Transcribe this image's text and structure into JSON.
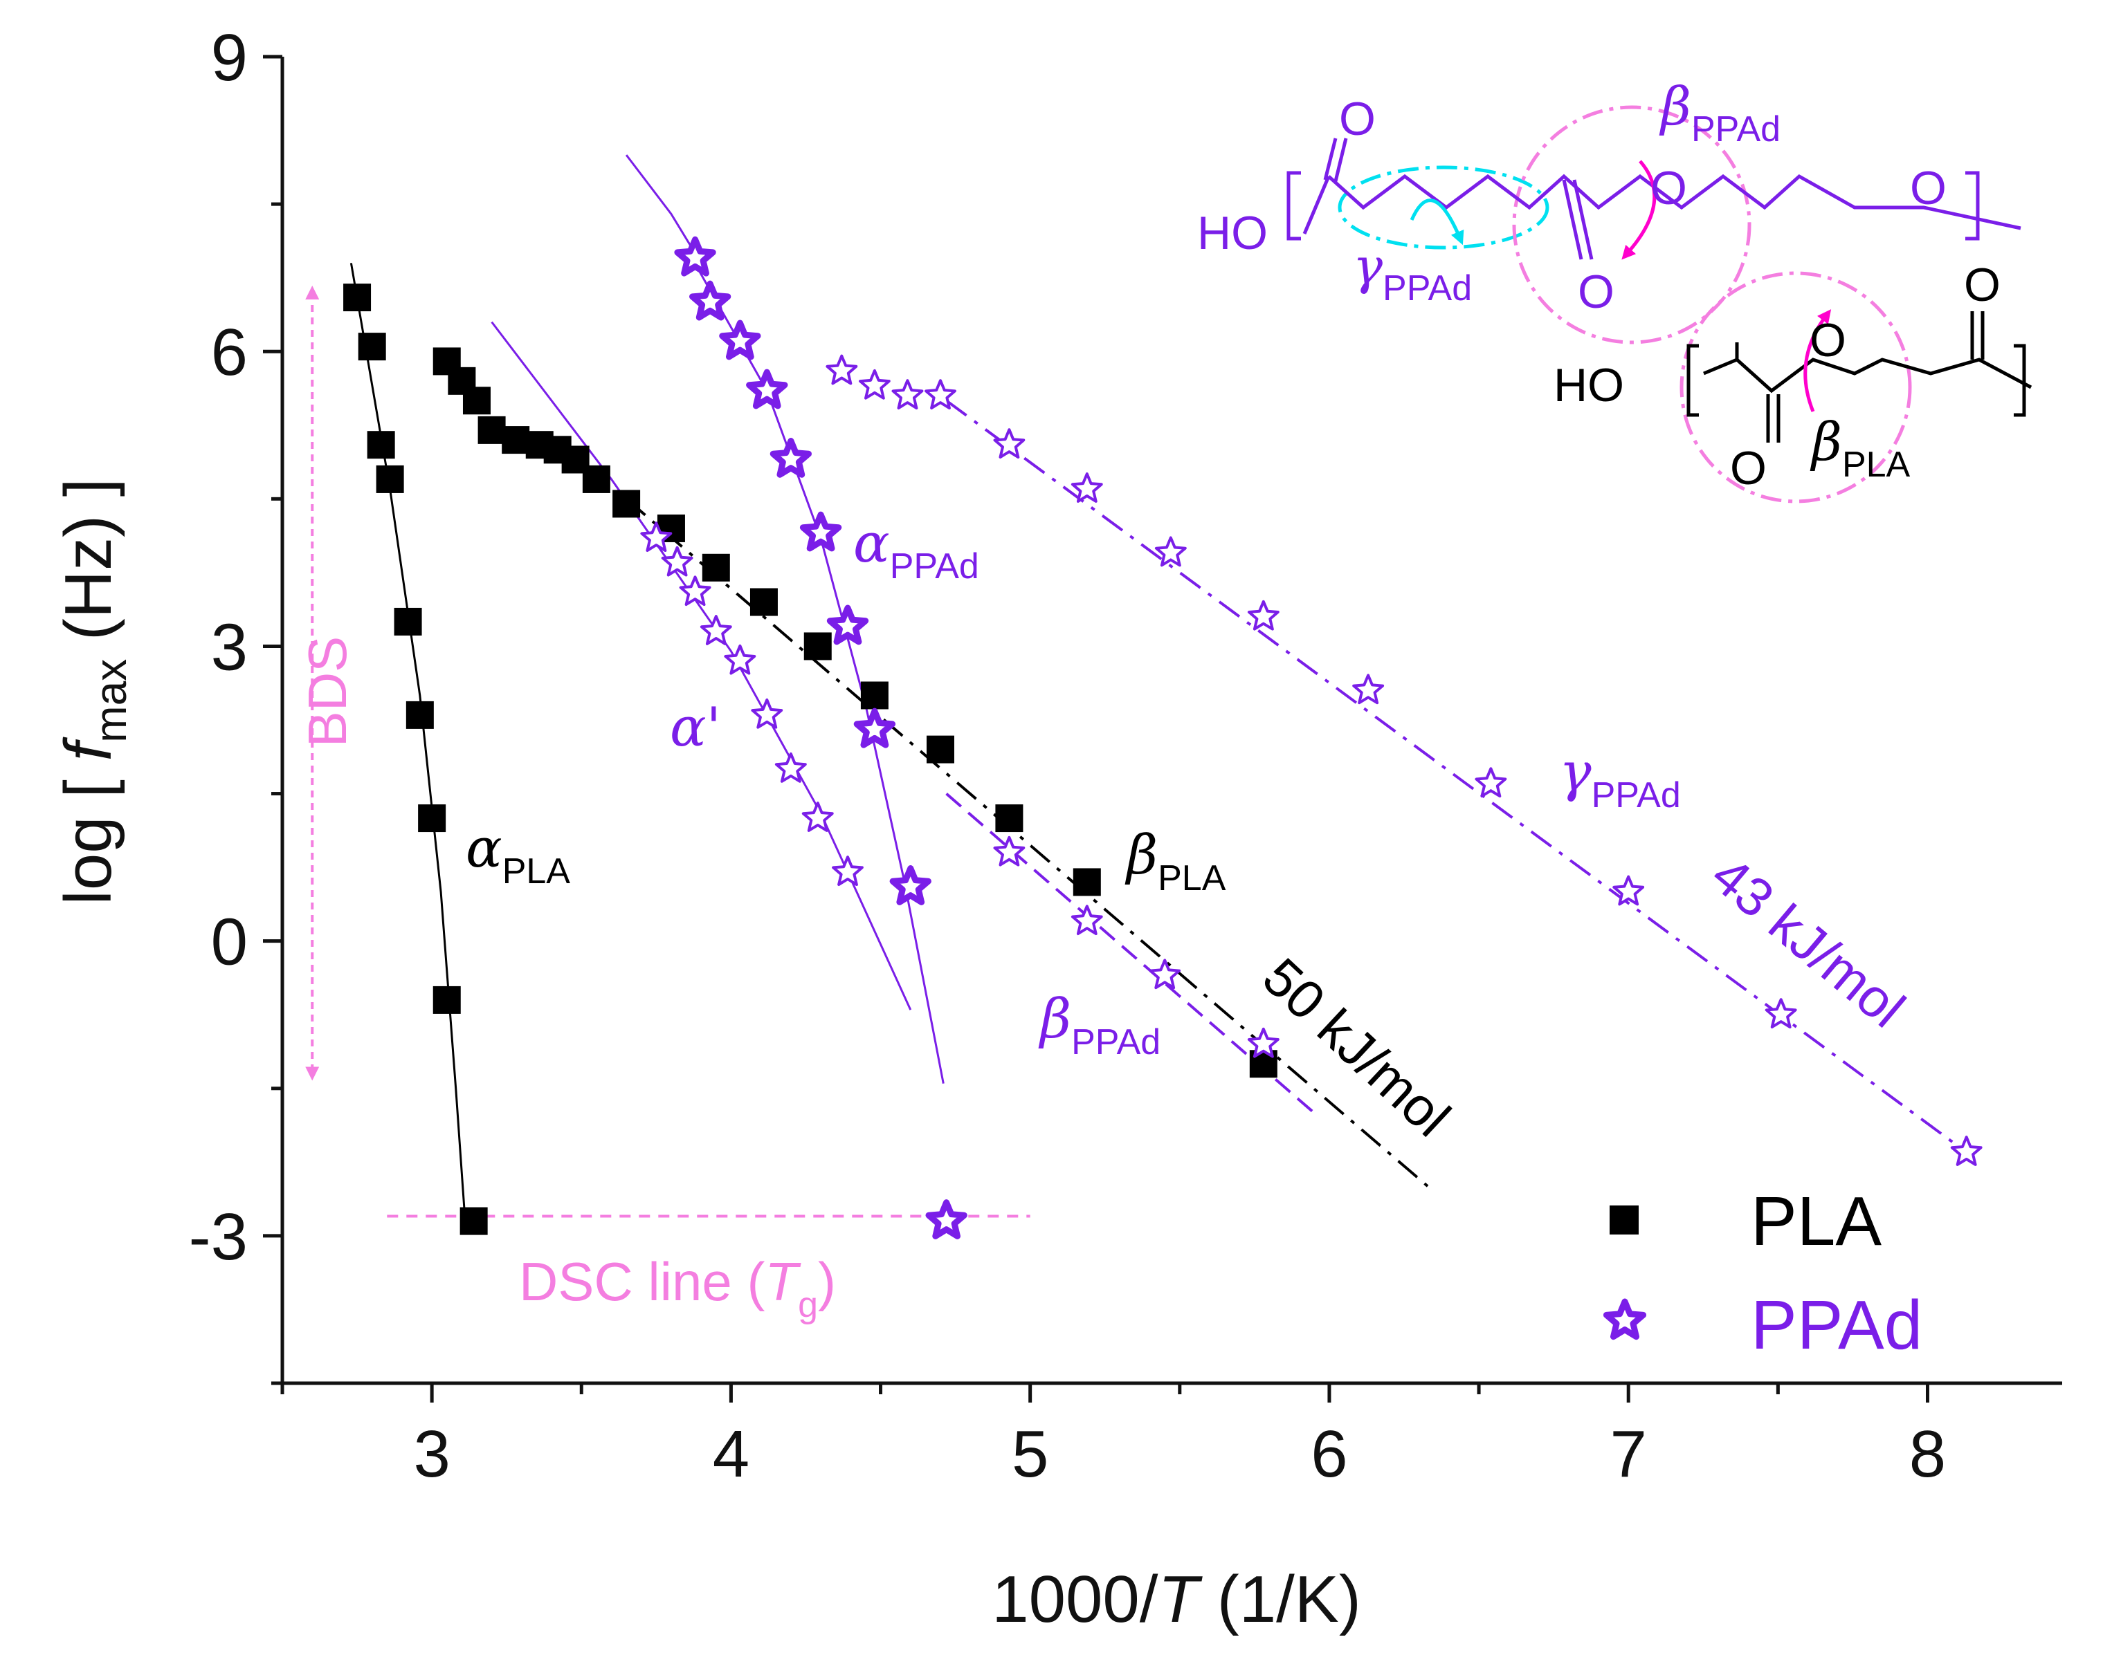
{
  "chart_data": {
    "type": "scatter",
    "xlabel": "1000/T (1/K)",
    "xlabel_parts": {
      "pre": "1000/",
      "var": "T",
      "post": " (1/K)"
    },
    "ylabel_parts": {
      "pre": "log [ ",
      "var": "f",
      "sub": "max",
      "post": " (Hz) ]"
    },
    "xlim": [
      2.5,
      8.45
    ],
    "ylim": [
      -4.5,
      9
    ],
    "x_ticks": [
      3,
      4,
      5,
      6,
      7,
      8
    ],
    "y_ticks": [
      9,
      6,
      3,
      0,
      -3
    ],
    "y_tick_labels": [
      "9",
      "6",
      "3",
      "0",
      "-3"
    ],
    "colors": {
      "PLA": "#000000",
      "PPAd": "#7a1ee8",
      "pink": "#f47ee0",
      "magenta": "#ff00cc",
      "cyan": "#00e0f0"
    },
    "series": [
      {
        "name": "PLA",
        "marker": "square",
        "color": "#000000",
        "points": [
          [
            2.75,
            6.55
          ],
          [
            2.8,
            6.05
          ],
          [
            2.83,
            5.05
          ],
          [
            2.86,
            4.7
          ],
          [
            2.92,
            3.25
          ],
          [
            2.96,
            2.3
          ],
          [
            3.0,
            1.25
          ],
          [
            3.05,
            -0.6
          ],
          [
            3.14,
            -2.85
          ],
          [
            3.05,
            5.9
          ],
          [
            3.1,
            5.7
          ],
          [
            3.15,
            5.5
          ],
          [
            3.2,
            5.2
          ],
          [
            3.28,
            5.1
          ],
          [
            3.36,
            5.05
          ],
          [
            3.42,
            5.0
          ],
          [
            3.48,
            4.9
          ],
          [
            3.55,
            4.7
          ],
          [
            3.65,
            4.45
          ],
          [
            3.8,
            4.2
          ],
          [
            3.95,
            3.8
          ],
          [
            4.11,
            3.45
          ],
          [
            4.29,
            3.0
          ],
          [
            4.48,
            2.5
          ],
          [
            4.7,
            1.95
          ],
          [
            4.93,
            1.25
          ],
          [
            5.19,
            0.6
          ],
          [
            5.78,
            -1.25
          ]
        ]
      },
      {
        "name": "PPAd",
        "marker": "star",
        "color": "#7a1ee8",
        "points": [
          [
            3.88,
            6.95
          ],
          [
            3.93,
            6.5
          ],
          [
            4.03,
            6.1
          ],
          [
            4.12,
            5.6
          ],
          [
            4.2,
            4.9
          ],
          [
            4.3,
            4.15
          ],
          [
            4.39,
            3.2
          ],
          [
            4.48,
            2.15
          ],
          [
            4.6,
            0.55
          ],
          [
            4.72,
            -2.85
          ]
        ]
      },
      {
        "name": "PPAd alpha'",
        "marker": "open-star",
        "color": "#7a1ee8",
        "points": [
          [
            3.75,
            4.1
          ],
          [
            3.82,
            3.85
          ],
          [
            3.88,
            3.55
          ],
          [
            3.95,
            3.15
          ],
          [
            4.03,
            2.85
          ],
          [
            4.12,
            2.3
          ],
          [
            4.2,
            1.75
          ],
          [
            4.29,
            1.25
          ],
          [
            4.39,
            0.7
          ]
        ]
      },
      {
        "name": "PPAd beta",
        "marker": "open-star",
        "color": "#7a1ee8",
        "points": [
          [
            4.93,
            0.9
          ],
          [
            5.19,
            0.2
          ],
          [
            5.45,
            -0.35
          ],
          [
            5.78,
            -1.05
          ]
        ]
      },
      {
        "name": "PPAd gamma",
        "marker": "open-star",
        "color": "#7a1ee8",
        "points": [
          [
            4.37,
            5.8
          ],
          [
            4.48,
            5.65
          ],
          [
            4.59,
            5.55
          ],
          [
            4.7,
            5.55
          ],
          [
            4.93,
            5.05
          ],
          [
            5.19,
            4.6
          ],
          [
            5.47,
            3.95
          ],
          [
            5.78,
            3.3
          ],
          [
            6.13,
            2.55
          ],
          [
            6.54,
            1.6
          ],
          [
            7.0,
            0.5
          ],
          [
            7.51,
            -0.75
          ],
          [
            8.13,
            -2.15
          ]
        ]
      }
    ],
    "fit_lines": [
      {
        "name": "alpha PLA fit",
        "color": "#000000",
        "style": "solid",
        "points": [
          [
            2.73,
            6.9
          ],
          [
            2.86,
            4.6
          ],
          [
            2.96,
            2.5
          ],
          [
            3.03,
            0.5
          ],
          [
            3.08,
            -1.5
          ],
          [
            3.11,
            -2.8
          ]
        ]
      },
      {
        "name": "alpha PPAd fit",
        "color": "#7a1ee8",
        "style": "solid",
        "points": [
          [
            3.86,
            7.0
          ],
          [
            4.12,
            5.6
          ],
          [
            4.3,
            4.1
          ],
          [
            4.45,
            2.4
          ],
          [
            4.58,
            0.6
          ],
          [
            4.71,
            -1.45
          ]
        ]
      },
      {
        "name": "alpha' fit",
        "color": "#7a1ee8",
        "style": "solid",
        "points": [
          [
            3.2,
            6.3
          ],
          [
            3.6,
            4.7
          ],
          [
            4.0,
            2.95
          ],
          [
            4.3,
            1.3
          ],
          [
            4.6,
            -0.7
          ]
        ]
      },
      {
        "name": "alpha PPAd upper fit",
        "color": "#7a1ee8",
        "style": "solid",
        "points": [
          [
            3.65,
            8.0
          ],
          [
            3.8,
            7.4
          ],
          [
            3.92,
            6.8
          ]
        ]
      },
      {
        "name": "beta PLA 50 kJ/mol",
        "color": "#000000",
        "style": "dashdot",
        "points": [
          [
            3.65,
            4.5
          ],
          [
            6.35,
            -2.55
          ]
        ]
      },
      {
        "name": "beta PPAd fit",
        "color": "#7a1ee8",
        "style": "dashed",
        "points": [
          [
            4.72,
            1.5
          ],
          [
            5.95,
            -1.75
          ]
        ]
      },
      {
        "name": "gamma PPAd 43 kJ/mol",
        "color": "#7a1ee8",
        "style": "dashdot",
        "points": [
          [
            4.72,
            5.5
          ],
          [
            8.13,
            -2.15
          ]
        ]
      }
    ],
    "dsc_line": {
      "y": -2.8,
      "x_range": [
        2.85,
        5.0
      ],
      "color": "#f47ee0"
    },
    "bds_range": {
      "x": 2.6,
      "y_range": [
        6.6,
        -1.35
      ],
      "color": "#f47ee0"
    },
    "annotations": [
      {
        "id": "alpha_pla",
        "greek": "α",
        "sub": "PLA",
        "color": "#000000"
      },
      {
        "id": "alpha_ppad",
        "greek": "α",
        "sub": "PPAd",
        "color": "#7a1ee8"
      },
      {
        "id": "alpha_prime",
        "greek": "α'",
        "color": "#7a1ee8"
      },
      {
        "id": "beta_pla",
        "greek": "β",
        "sub": "PLA",
        "color": "#000000"
      },
      {
        "id": "beta_ppad",
        "greek": "β",
        "sub": "PPAd",
        "color": "#7a1ee8"
      },
      {
        "id": "gamma_ppad",
        "greek": "γ",
        "sub": "PPAd",
        "color": "#7a1ee8"
      },
      {
        "id": "bds",
        "text": "BDS",
        "color": "#f47ee0"
      },
      {
        "id": "energy_50",
        "text": "50 kJ/mol",
        "color": "#000000"
      },
      {
        "id": "energy_43",
        "text": "43 kJ/mol",
        "color": "#7a1ee8"
      },
      {
        "id": "dsc",
        "text": "DSC line (",
        "var": "T",
        "sub": "g",
        "close": ")",
        "color": "#f47ee0"
      }
    ],
    "legend": {
      "position": "bottom-right",
      "entries": [
        {
          "label": "PLA",
          "color": "#000000"
        },
        {
          "label": "PPAd",
          "color": "#7a1ee8"
        }
      ]
    }
  },
  "structures": {
    "ppad": {
      "ho": "HO",
      "o_top_left": "O",
      "o_bottom": "O",
      "o_ester": "O",
      "o_ether": "O",
      "beta": "β",
      "beta_sub": "PPAd",
      "gamma": "γ",
      "gamma_sub": "PPAd"
    },
    "pla": {
      "ho": "HO",
      "o_bottom": "O",
      "o_ester": "O",
      "o_top_right": "O",
      "beta": "β",
      "beta_sub": "PLA"
    }
  }
}
